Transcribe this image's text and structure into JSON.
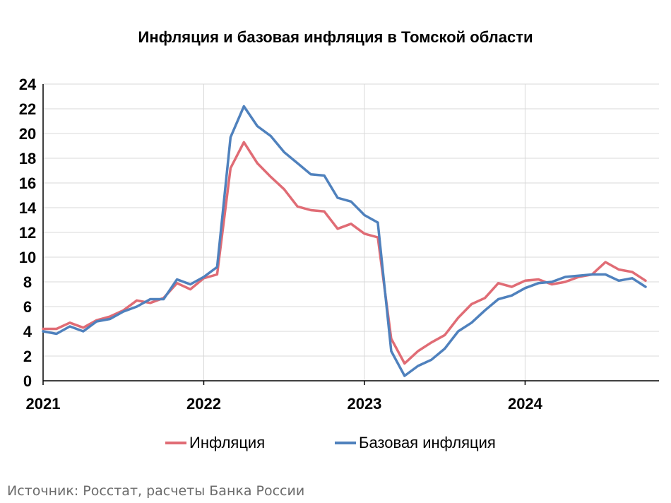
{
  "chart_data": {
    "type": "line",
    "title": "Инфляция и базовая инфляция в Томской области",
    "xlabel": "",
    "ylabel": "",
    "ylim": [
      0,
      24
    ],
    "yticks": [
      "0",
      "2",
      "4",
      "6",
      "8",
      "10",
      "12",
      "14",
      "16",
      "18",
      "20",
      "22",
      "24"
    ],
    "xticks": [
      {
        "label": "2021",
        "index": 0
      },
      {
        "label": "2022",
        "index": 12
      },
      {
        "label": "2023",
        "index": 24
      },
      {
        "label": "2024",
        "index": 36
      }
    ],
    "x": [
      "2021-01",
      "2021-02",
      "2021-03",
      "2021-04",
      "2021-05",
      "2021-06",
      "2021-07",
      "2021-08",
      "2021-09",
      "2021-10",
      "2021-11",
      "2021-12",
      "2022-01",
      "2022-02",
      "2022-03",
      "2022-04",
      "2022-05",
      "2022-06",
      "2022-07",
      "2022-08",
      "2022-09",
      "2022-10",
      "2022-11",
      "2022-12",
      "2023-01",
      "2023-02",
      "2023-03",
      "2023-04",
      "2023-05",
      "2023-06",
      "2023-07",
      "2023-08",
      "2023-09",
      "2023-10",
      "2023-11",
      "2023-12",
      "2024-01",
      "2024-02",
      "2024-03",
      "2024-04",
      "2024-05",
      "2024-06",
      "2024-07",
      "2024-08",
      "2024-09",
      "2024-10"
    ],
    "grid": true,
    "legend_position": "bottom",
    "series": [
      {
        "name": "Инфляция",
        "color": "#e06c75",
        "values": [
          4.2,
          4.2,
          4.7,
          4.3,
          4.9,
          5.2,
          5.7,
          6.5,
          6.3,
          6.7,
          7.9,
          7.4,
          8.3,
          8.6,
          17.2,
          19.3,
          17.6,
          16.5,
          15.5,
          14.1,
          13.8,
          13.7,
          12.3,
          12.7,
          11.9,
          11.6,
          3.4,
          1.4,
          2.4,
          3.1,
          3.7,
          5.1,
          6.2,
          6.7,
          7.9,
          7.6,
          8.1,
          8.2,
          7.8,
          8.0,
          8.4,
          8.6,
          9.6,
          9.0,
          8.8,
          8.1
        ]
      },
      {
        "name": "Базовая инфляция",
        "color": "#4f81bd",
        "values": [
          4.0,
          3.8,
          4.4,
          4.0,
          4.8,
          5.0,
          5.6,
          6.0,
          6.6,
          6.6,
          8.2,
          7.8,
          8.4,
          9.2,
          19.7,
          22.2,
          20.6,
          19.8,
          18.5,
          17.6,
          16.7,
          16.6,
          14.8,
          14.5,
          13.4,
          12.8,
          2.4,
          0.4,
          1.2,
          1.7,
          2.6,
          4.0,
          4.7,
          5.7,
          6.6,
          6.9,
          7.5,
          7.9,
          8.0,
          8.4,
          8.5,
          8.6,
          8.6,
          8.1,
          8.3,
          7.6
        ]
      }
    ]
  },
  "source": "Источник: Росстат, расчеты Банка России"
}
